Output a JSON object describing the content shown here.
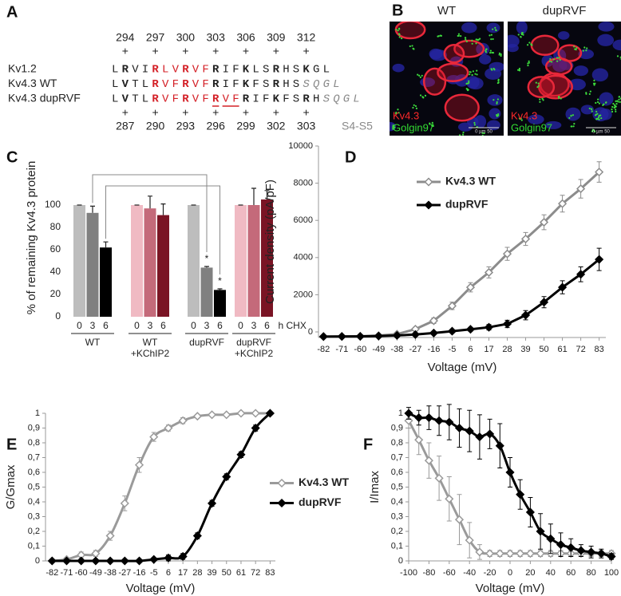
{
  "panel_labels": [
    "A",
    "B",
    "C",
    "D",
    "E",
    "F"
  ],
  "alignment": {
    "top_positions": [
      294,
      297,
      300,
      303,
      306,
      309,
      312
    ],
    "top_marks": [
      "+",
      "+",
      "+",
      "+",
      "+",
      "+",
      "+"
    ],
    "rows": [
      {
        "name": "Kv1.2",
        "segments": [
          {
            "text": "L"
          },
          {
            "text": "R",
            "bold": true
          },
          {
            "text": "VI"
          },
          {
            "text": "R",
            "bold": true,
            "color": "#d42027"
          },
          {
            "text": "LV",
            "color": "#d42027"
          },
          {
            "text": "R",
            "bold": true,
            "color": "#d42027"
          },
          {
            "text": "VF",
            "color": "#d42027"
          },
          {
            "text": "R",
            "bold": true
          },
          {
            "text": "IF"
          },
          {
            "text": "K",
            "bold": true
          },
          {
            "text": "LS"
          },
          {
            "text": "R",
            "bold": true
          },
          {
            "text": "HS"
          },
          {
            "text": "K",
            "bold": true
          },
          {
            "text": "GL"
          }
        ]
      },
      {
        "name": "Kv4.3 WT",
        "segments": [
          {
            "text": "L"
          },
          {
            "text": "V",
            "bold": true
          },
          {
            "text": "TL"
          },
          {
            "text": "R",
            "bold": true,
            "color": "#d42027"
          },
          {
            "text": "VF",
            "color": "#d42027"
          },
          {
            "text": "R",
            "bold": true,
            "color": "#d42027"
          },
          {
            "text": "VF",
            "color": "#d42027"
          },
          {
            "text": "R",
            "bold": true
          },
          {
            "text": "IF"
          },
          {
            "text": "K",
            "bold": true
          },
          {
            "text": "FS"
          },
          {
            "text": "R",
            "bold": true
          },
          {
            "text": "HS"
          },
          {
            "text": "SQGL",
            "italic": true,
            "color": "#8a8a8a"
          }
        ]
      },
      {
        "name": "Kv4.3 dupRVF",
        "segments": [
          {
            "text": "L"
          },
          {
            "text": "V",
            "bold": true
          },
          {
            "text": "TL"
          },
          {
            "text": "R",
            "bold": true,
            "color": "#d42027"
          },
          {
            "text": "VF",
            "color": "#d42027"
          },
          {
            "text": "R",
            "bold": true,
            "color": "#d42027"
          },
          {
            "text": "VF",
            "color": "#d42027"
          },
          {
            "text": "R",
            "bold": true,
            "color": "#d42027",
            "underline": true
          },
          {
            "text": "VF",
            "color": "#d42027",
            "underline": true
          },
          {
            "text": "R",
            "bold": true
          },
          {
            "text": "IF"
          },
          {
            "text": "K",
            "bold": true
          },
          {
            "text": "FS"
          },
          {
            "text": "R",
            "bold": true
          },
          {
            "text": "H"
          },
          {
            "text": "SQGL",
            "italic": true,
            "color": "#8a8a8a"
          }
        ]
      }
    ],
    "bottom_marks": [
      "+",
      "+",
      "+",
      "+",
      "+",
      "+",
      "+"
    ],
    "bottom_positions": [
      287,
      290,
      293,
      296,
      299,
      302,
      303
    ],
    "domain_label": "S4-S5"
  },
  "micrographs": [
    {
      "title": "WT",
      "stain_labels": [
        {
          "text": "Kv4.3",
          "color": "#ff2a2a"
        },
        {
          "text": "Golgin97",
          "color": "#33dd33"
        }
      ],
      "scale_bar": "0 µm 50"
    },
    {
      "title": "dupRVF",
      "stain_labels": [
        {
          "text": "Kv4.3",
          "color": "#ff2a2a"
        },
        {
          "text": "Golgin97",
          "color": "#33dd33"
        }
      ],
      "scale_bar": "0 µm 50"
    }
  ],
  "chart_data": [
    {
      "type": "bar",
      "ylabel": "% of remaining Kv4.3 protein",
      "ylim": [
        0,
        120
      ],
      "yticks": [
        0,
        20,
        40,
        60,
        80,
        100
      ],
      "categories": [
        "0",
        "3",
        "6"
      ],
      "category_unit": "h CHX",
      "groups": [
        {
          "label_lines": [
            "WT"
          ],
          "values": [
            100,
            93,
            62
          ],
          "errors": [
            0,
            6,
            5
          ],
          "colors": [
            "#bdbdbd",
            "#808080",
            "#000000"
          ]
        },
        {
          "label_lines": [
            "WT",
            "+KChIP2"
          ],
          "values": [
            100,
            97,
            91
          ],
          "errors": [
            0,
            11,
            10
          ],
          "colors": [
            "#f0bac3",
            "#c46a7a",
            "#7a1424"
          ]
        },
        {
          "label_lines": [
            "dupRVF"
          ],
          "values": [
            100,
            44,
            24
          ],
          "errors": [
            0,
            1,
            1
          ],
          "colors": [
            "#bdbdbd",
            "#808080",
            "#000000"
          ],
          "marks": [
            null,
            "*",
            "*"
          ]
        },
        {
          "label_lines": [
            "dupRVF",
            "+KChIP2"
          ],
          "values": [
            100,
            100,
            105
          ],
          "errors": [
            0,
            15,
            8
          ],
          "colors": [
            "#f0bac3",
            "#c46a7a",
            "#7a1424"
          ]
        }
      ]
    },
    {
      "type": "line",
      "xlabel": "Voltage (mV)",
      "ylabel": "Current density (pA/pF)",
      "x": [
        -82,
        -71,
        -60,
        -49,
        -38,
        -27,
        -16,
        -5,
        6,
        17,
        28,
        39,
        50,
        61,
        72,
        83
      ],
      "xlim": [
        -85,
        87
      ],
      "xticks": [
        -82,
        -71,
        -60,
        -49,
        -38,
        -27,
        -16,
        -5,
        6,
        17,
        28,
        39,
        50,
        61,
        72,
        83
      ],
      "ylim": [
        -300,
        10000
      ],
      "yticks": [
        0,
        2000,
        4000,
        6000,
        8000,
        10000
      ],
      "legend": "upper left",
      "series": [
        {
          "name": "Kv4.3 WT",
          "color": "#8c8c8c",
          "marker": "open-diamond",
          "values": [
            -250,
            -240,
            -230,
            -200,
            -120,
            150,
            600,
            1400,
            2400,
            3200,
            4200,
            5000,
            5900,
            6900,
            7700,
            8600
          ],
          "errors": [
            30,
            30,
            30,
            40,
            60,
            100,
            150,
            200,
            250,
            300,
            350,
            350,
            400,
            450,
            500,
            550
          ]
        },
        {
          "name": "dupRVF",
          "color": "#000000",
          "marker": "diamond",
          "values": [
            -250,
            -245,
            -240,
            -220,
            -190,
            -140,
            -60,
            40,
            140,
            250,
            430,
            900,
            1600,
            2400,
            3100,
            3900
          ],
          "errors": [
            30,
            30,
            30,
            30,
            40,
            50,
            60,
            80,
            100,
            150,
            200,
            250,
            300,
            350,
            400,
            600
          ]
        }
      ]
    },
    {
      "type": "line",
      "xlabel": "Voltage (mV)",
      "ylabel": "G/Gmax",
      "smooth": true,
      "x": [
        -82,
        -71,
        -60,
        -49,
        -38,
        -27,
        -16,
        -5,
        6,
        17,
        28,
        39,
        50,
        61,
        72,
        83
      ],
      "xlim": [
        -87,
        87
      ],
      "xticks": [
        -82,
        -71,
        -60,
        -49,
        -38,
        -27,
        -16,
        -5,
        6,
        17,
        28,
        39,
        50,
        61,
        72,
        83
      ],
      "ylim": [
        0,
        1
      ],
      "yticks": [
        0,
        {
          "value": 0.1,
          "label": "0,1"
        },
        {
          "value": 0.2,
          "label": "0,2"
        },
        {
          "value": 0.3,
          "label": "0,3"
        },
        {
          "value": 0.4,
          "label": "0,4"
        },
        {
          "value": 0.5,
          "label": "0,5"
        },
        {
          "value": 0.6,
          "label": "0,6"
        },
        {
          "value": 0.7,
          "label": "0,7"
        },
        {
          "value": 0.8,
          "label": "0,8"
        },
        {
          "value": 0.9,
          "label": "0,9"
        },
        1
      ],
      "legend": "outside right",
      "series": [
        {
          "name": "Kv4.3 WT",
          "color": "#9a9a9a",
          "marker": "open-diamond",
          "values": [
            0,
            0.01,
            0.04,
            0.05,
            0.17,
            0.39,
            0.65,
            0.84,
            0.9,
            0.95,
            0.98,
            0.99,
            0.99,
            1,
            1,
            1
          ],
          "errors": [
            0,
            0.01,
            0.02,
            0.02,
            0.03,
            0.05,
            0.05,
            0.03,
            0.02,
            0.02,
            0.01,
            0.01,
            0.01,
            0,
            0,
            0
          ]
        },
        {
          "name": "dupRVF",
          "color": "#000000",
          "marker": "diamond",
          "values": [
            0,
            0,
            0,
            0,
            0,
            0,
            0,
            0.01,
            0.02,
            0.03,
            0.17,
            0.39,
            0.57,
            0.72,
            0.9,
            1
          ],
          "errors": [
            0,
            0,
            0,
            0,
            0,
            0,
            0,
            0.01,
            0.02,
            0.02,
            0.02,
            0.02,
            0.02,
            0.02,
            0.02,
            0
          ]
        }
      ]
    },
    {
      "type": "line",
      "xlabel": "Voltage (mV)",
      "ylabel": "I/Imax",
      "smooth": true,
      "x": [
        -100,
        -90,
        -80,
        -70,
        -60,
        -50,
        -40,
        -30,
        -20,
        -10,
        0,
        10,
        20,
        30,
        40,
        50,
        60,
        70,
        80,
        90,
        100
      ],
      "xlim": [
        -100,
        100
      ],
      "xticks": [
        -100,
        -80,
        -60,
        -40,
        -20,
        0,
        20,
        40,
        60,
        80,
        100
      ],
      "ylim": [
        0,
        1
      ],
      "yticks": [
        0,
        {
          "value": 0.1,
          "label": "0,1"
        },
        {
          "value": 0.2,
          "label": "0,2"
        },
        {
          "value": 0.3,
          "label": "0,3"
        },
        {
          "value": 0.4,
          "label": "0,4"
        },
        {
          "value": 0.5,
          "label": "0,5"
        },
        {
          "value": 0.6,
          "label": "0,6"
        },
        {
          "value": 0.7,
          "label": "0,7"
        },
        {
          "value": 0.8,
          "label": "0,8"
        },
        {
          "value": 0.9,
          "label": "0,9"
        },
        1
      ],
      "series": [
        {
          "color": "#9a9a9a",
          "marker": "open-diamond",
          "values": [
            0.95,
            0.82,
            0.68,
            0.56,
            0.42,
            0.28,
            0.14,
            0.06,
            0.05,
            0.05,
            0.05,
            0.05,
            0.05,
            0.05,
            0.05,
            0.05,
            0.05,
            0.05,
            0.05,
            0.05,
            0.05
          ],
          "errors": [
            0.05,
            0.1,
            0.12,
            0.15,
            0.15,
            0.17,
            0.12,
            0.05,
            0.02,
            0.02,
            0.02,
            0.02,
            0.02,
            0.02,
            0.02,
            0.02,
            0.02,
            0.02,
            0.02,
            0.02,
            0.02
          ]
        },
        {
          "color": "#000000",
          "marker": "diamond",
          "values": [
            1,
            0.97,
            0.97,
            0.95,
            0.94,
            0.9,
            0.88,
            0.84,
            0.86,
            0.78,
            0.6,
            0.45,
            0.33,
            0.2,
            0.15,
            0.11,
            0.09,
            0.07,
            0.06,
            0.05,
            0.03
          ],
          "errors": [
            0.04,
            0.05,
            0.08,
            0.1,
            0.12,
            0.13,
            0.14,
            0.15,
            0.1,
            0.15,
            0.1,
            0.1,
            0.1,
            0.12,
            0.1,
            0.08,
            0.06,
            0.04,
            0.04,
            0.03,
            0.02
          ]
        }
      ]
    }
  ]
}
